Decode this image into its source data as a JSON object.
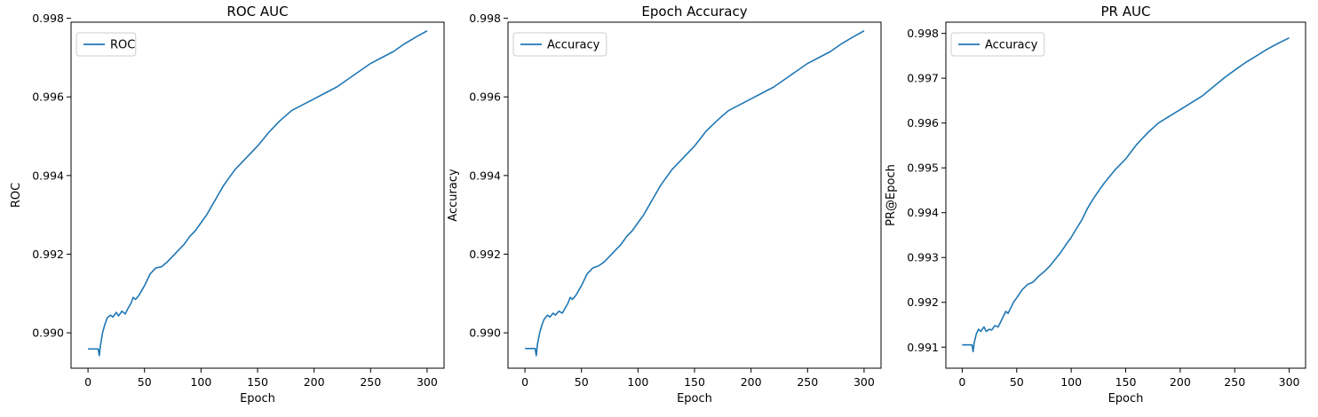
{
  "chart_data": [
    {
      "type": "line",
      "title": "ROC AUC",
      "xlabel": "Epoch",
      "ylabel": "ROC",
      "xlim": [
        -15,
        315
      ],
      "ylim": [
        0.9891,
        0.9979
      ],
      "xticks": [
        0,
        50,
        100,
        150,
        200,
        250,
        300
      ],
      "yticks": [
        0.99,
        0.992,
        0.994,
        0.996,
        0.998
      ],
      "ytick_labels": [
        "0.990",
        "0.992",
        "0.994",
        "0.996",
        "0.998"
      ],
      "legend_position": "upper-left",
      "color": "#1f77b4",
      "series": [
        {
          "name": "ROC",
          "x": [
            0,
            9,
            10,
            11,
            13,
            15,
            17,
            20,
            22,
            25,
            27,
            30,
            33,
            35,
            38,
            40,
            42,
            45,
            47,
            50,
            55,
            60,
            65,
            70,
            75,
            80,
            85,
            90,
            95,
            100,
            105,
            110,
            115,
            120,
            125,
            130,
            135,
            140,
            150,
            160,
            170,
            180,
            190,
            200,
            210,
            220,
            230,
            240,
            250,
            260,
            270,
            280,
            290,
            300
          ],
          "y": [
            0.98959,
            0.98959,
            0.98942,
            0.98968,
            0.99002,
            0.99022,
            0.99038,
            0.99045,
            0.9904,
            0.99052,
            0.99043,
            0.99055,
            0.99048,
            0.9906,
            0.99075,
            0.9909,
            0.99085,
            0.99095,
            0.99105,
            0.9912,
            0.9915,
            0.99165,
            0.99168,
            0.9918,
            0.99195,
            0.9921,
            0.99225,
            0.99245,
            0.9926,
            0.9928,
            0.993,
            0.99325,
            0.9935,
            0.99375,
            0.99395,
            0.99415,
            0.9943,
            0.99445,
            0.99475,
            0.9951,
            0.9954,
            0.99565,
            0.9958,
            0.99595,
            0.9961,
            0.99625,
            0.99645,
            0.99665,
            0.99685,
            0.997,
            0.99715,
            0.99735,
            0.99752,
            0.99768
          ]
        }
      ]
    },
    {
      "type": "line",
      "title": "Epoch Accuracy",
      "xlabel": "Epoch",
      "ylabel": "Accuracy",
      "xlim": [
        -15,
        315
      ],
      "ylim": [
        0.9891,
        0.9979
      ],
      "xticks": [
        0,
        50,
        100,
        150,
        200,
        250,
        300
      ],
      "yticks": [
        0.99,
        0.992,
        0.994,
        0.996,
        0.998
      ],
      "ytick_labels": [
        "0.990",
        "0.992",
        "0.994",
        "0.996",
        "0.998"
      ],
      "legend_position": "upper-left",
      "color": "#1f77b4",
      "series": [
        {
          "name": "Accuracy",
          "x": [
            0,
            9,
            10,
            11,
            13,
            15,
            17,
            20,
            22,
            25,
            27,
            30,
            33,
            35,
            38,
            40,
            42,
            45,
            47,
            50,
            55,
            60,
            65,
            70,
            75,
            80,
            85,
            90,
            95,
            100,
            105,
            110,
            115,
            120,
            125,
            130,
            135,
            140,
            150,
            160,
            170,
            180,
            190,
            200,
            210,
            220,
            230,
            240,
            250,
            260,
            270,
            280,
            290,
            300
          ],
          "y": [
            0.9896,
            0.9896,
            0.98942,
            0.9897,
            0.99,
            0.9902,
            0.99035,
            0.99045,
            0.9904,
            0.9905,
            0.99045,
            0.99055,
            0.9905,
            0.9906,
            0.99075,
            0.9909,
            0.99085,
            0.99095,
            0.99105,
            0.9912,
            0.9915,
            0.99165,
            0.9917,
            0.9918,
            0.99195,
            0.9921,
            0.99225,
            0.99245,
            0.9926,
            0.9928,
            0.993,
            0.99325,
            0.9935,
            0.99375,
            0.99395,
            0.99415,
            0.9943,
            0.99445,
            0.99475,
            0.99512,
            0.9954,
            0.99565,
            0.9958,
            0.99595,
            0.9961,
            0.99625,
            0.99645,
            0.99665,
            0.99685,
            0.997,
            0.99715,
            0.99735,
            0.99752,
            0.99768
          ]
        }
      ]
    },
    {
      "type": "line",
      "title": "PR AUC",
      "xlabel": "Epoch",
      "ylabel": "PR@Epoch",
      "xlim": [
        -15,
        315
      ],
      "ylim": [
        0.99053,
        0.99825
      ],
      "xticks": [
        0,
        50,
        100,
        150,
        200,
        250,
        300
      ],
      "yticks": [
        0.991,
        0.992,
        0.993,
        0.994,
        0.995,
        0.996,
        0.997,
        0.998
      ],
      "ytick_labels": [
        "0.991",
        "0.992",
        "0.993",
        "0.994",
        "0.995",
        "0.996",
        "0.997",
        "0.998"
      ],
      "legend_position": "upper-left",
      "color": "#1f77b4",
      "series": [
        {
          "name": "Accuracy",
          "x": [
            0,
            9,
            10,
            11,
            13,
            15,
            17,
            20,
            22,
            25,
            27,
            30,
            33,
            35,
            38,
            40,
            42,
            45,
            47,
            50,
            55,
            60,
            65,
            70,
            75,
            80,
            85,
            90,
            95,
            100,
            105,
            110,
            115,
            120,
            125,
            130,
            135,
            140,
            150,
            160,
            170,
            180,
            190,
            200,
            210,
            220,
            230,
            240,
            250,
            260,
            270,
            280,
            290,
            300
          ],
          "y": [
            0.99105,
            0.99105,
            0.9909,
            0.9911,
            0.9913,
            0.9914,
            0.99135,
            0.99145,
            0.99135,
            0.9914,
            0.99138,
            0.99148,
            0.99145,
            0.99155,
            0.9917,
            0.9918,
            0.99175,
            0.9919,
            0.992,
            0.9921,
            0.99228,
            0.9924,
            0.99245,
            0.99258,
            0.99268,
            0.9928,
            0.99295,
            0.9931,
            0.99328,
            0.99345,
            0.99365,
            0.99385,
            0.9941,
            0.9943,
            0.99448,
            0.99465,
            0.9948,
            0.99495,
            0.9952,
            0.99552,
            0.99578,
            0.996,
            0.99615,
            0.9963,
            0.99645,
            0.9966,
            0.9968,
            0.997,
            0.99718,
            0.99735,
            0.9975,
            0.99765,
            0.99778,
            0.9979
          ]
        }
      ]
    }
  ]
}
